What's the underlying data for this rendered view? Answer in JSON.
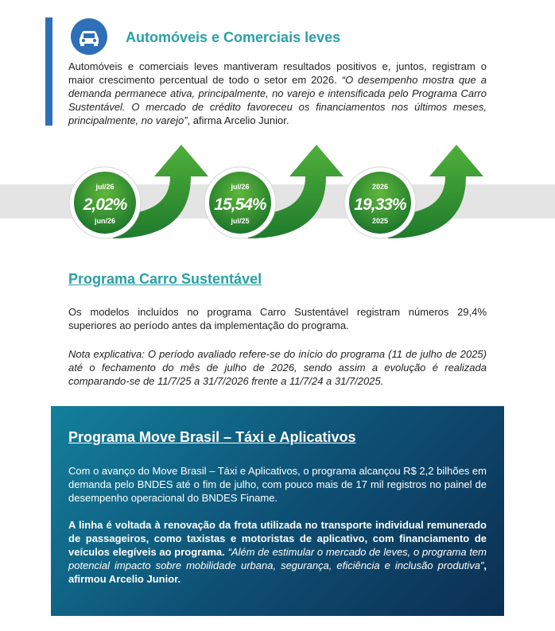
{
  "section1": {
    "title": "Automóveis e Comerciais leves",
    "paragraph": [
      {
        "text": "Automóveis e comerciais leves mantiveram resultados positivos e, juntos, registram o maior crescimento percentual de todo o setor em 2026. ",
        "italic": false
      },
      {
        "text": "“O desempenho mostra que a demanda permanece ativa, principalmente, no varejo e intensificada pelo Programa Carro Sustentável. O mercado de crédito favoreceu os financiamentos nos últimos meses, principalmente, no varejo”",
        "italic": true
      },
      {
        "text": ", afirma Arcelio Junior.",
        "italic": false
      }
    ]
  },
  "indicators": [
    {
      "top": "jul/26",
      "value": "2,02%",
      "bottom": "jun/26"
    },
    {
      "top": "jul/26",
      "value": "15,54%",
      "bottom": "jul/25"
    },
    {
      "top": "2026",
      "value": "19,33%",
      "bottom": "2025"
    }
  ],
  "section2": {
    "title": "Programa Carro Sustentável",
    "paragraph": "Os modelos incluídos no programa Carro Sustentável registram números 29,4% superiores ao período antes da implementação do programa.",
    "note": "Nota explicativa: O período avaliado refere-se do início do programa (11 de julho de 2025) até o fechamento do mês de julho de 2026, sendo assim a evolução é realizada comparando-se de 11/7/25 a 31/7/2026 frente a 11/7/24 a 31/7/2025."
  },
  "section3": {
    "title": "Programa Move Brasil – Táxi e Aplicativos",
    "paragraph": "Com o avanço do Move Brasil – Táxi e Aplicativos, o programa alcançou R$ 2,2 bilhões em demanda pelo BNDES até o fim de julho, com pouco mais de 17 mil registros no painel de desempenho operacional do BNDES Finame.",
    "paragraph2": [
      {
        "text": "A linha é voltada à renovação da frota utilizada no transporte individual remunerado de passageiros, como taxistas e motoristas de aplicativo, com financiamento de veículos elegíveis ao programa. ",
        "bold": true
      },
      {
        "text": "“Além de estimular o mercado de leves, o programa tem potencial impacto sobre mobilidade urbana, segurança, eficiência e inclusão produtiva”",
        "italic": true
      },
      {
        "text": ", afirmou Arcelio Junior.",
        "bold": true
      }
    ]
  }
}
